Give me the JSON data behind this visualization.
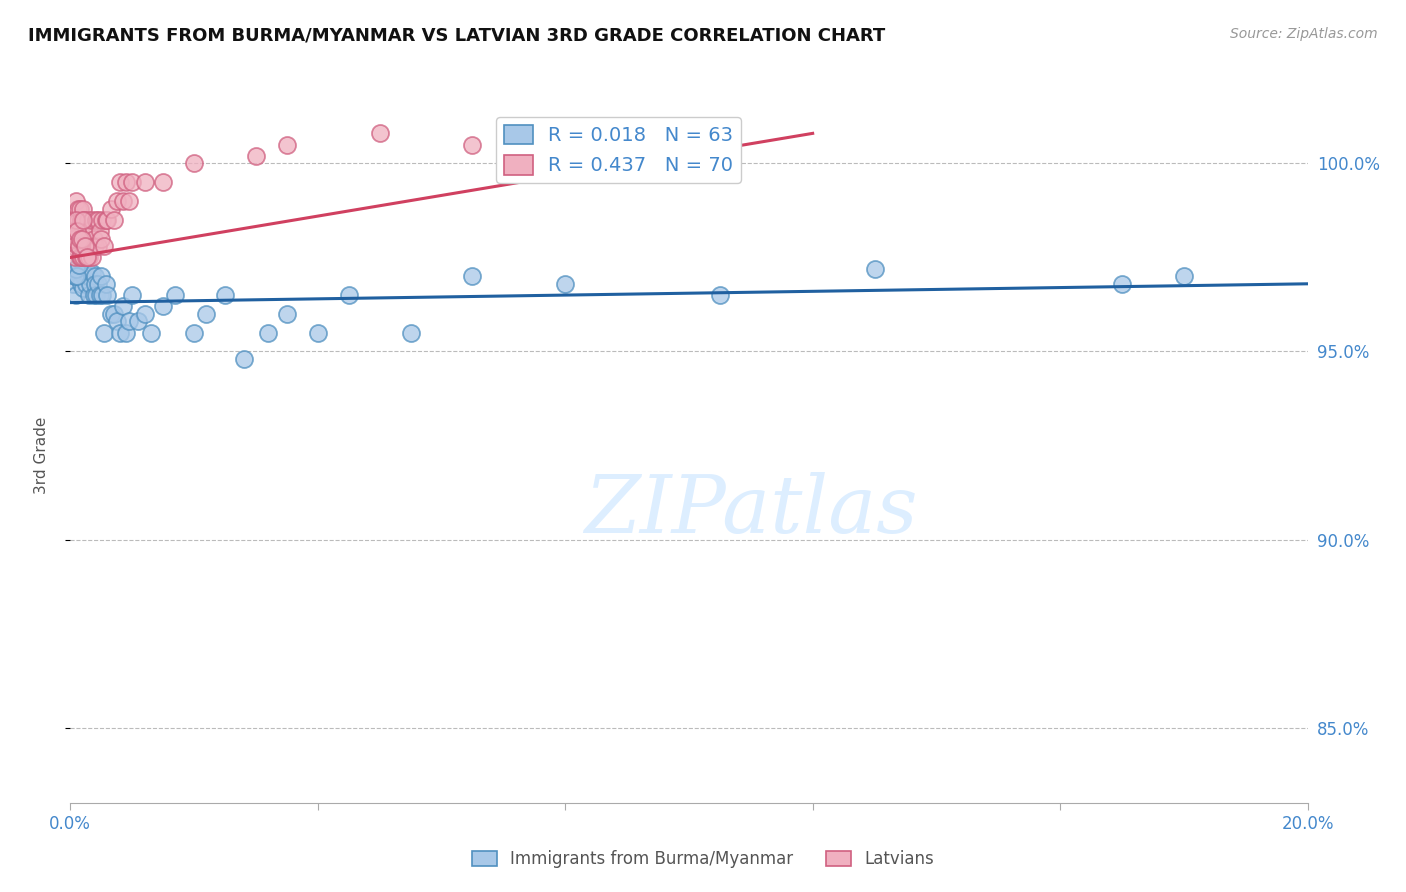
{
  "title": "IMMIGRANTS FROM BURMA/MYANMAR VS LATVIAN 3RD GRADE CORRELATION CHART",
  "source": "Source: ZipAtlas.com",
  "ylabel": "3rd Grade",
  "xlim": [
    0.0,
    20.0
  ],
  "ylim": [
    83.0,
    101.5
  ],
  "yticks": [
    85.0,
    90.0,
    95.0,
    100.0
  ],
  "legend_r_blue": "R = 0.018",
  "legend_n_blue": "N = 63",
  "legend_r_pink": "R = 0.437",
  "legend_n_pink": "N = 70",
  "legend_label_blue": "Immigrants from Burma/Myanmar",
  "legend_label_pink": "Latvians",
  "blue_color": "#a8c8e8",
  "pink_color": "#f0b0c0",
  "blue_edge_color": "#5090c0",
  "pink_edge_color": "#d06080",
  "blue_line_color": "#2060a0",
  "pink_line_color": "#d04060",
  "grid_color": "#bbbbbb",
  "right_axis_color": "#4488cc",
  "watermark_color": "#ddeeff",
  "blue_x": [
    0.05,
    0.08,
    0.1,
    0.1,
    0.12,
    0.13,
    0.15,
    0.15,
    0.17,
    0.18,
    0.2,
    0.2,
    0.22,
    0.25,
    0.25,
    0.28,
    0.3,
    0.3,
    0.32,
    0.35,
    0.38,
    0.4,
    0.4,
    0.42,
    0.45,
    0.48,
    0.5,
    0.52,
    0.55,
    0.58,
    0.6,
    0.65,
    0.7,
    0.75,
    0.8,
    0.85,
    0.9,
    0.95,
    1.0,
    1.1,
    1.2,
    1.3,
    1.5,
    1.7,
    2.0,
    2.2,
    2.5,
    2.8,
    3.2,
    3.5,
    4.0,
    4.5,
    5.5,
    6.5,
    8.0,
    10.5,
    13.0,
    17.0,
    18.0,
    0.07,
    0.09,
    0.11,
    0.14
  ],
  "blue_y": [
    96.8,
    97.0,
    97.2,
    96.5,
    97.0,
    97.2,
    97.0,
    97.5,
    96.8,
    97.1,
    97.3,
    96.7,
    97.0,
    97.2,
    96.8,
    97.0,
    96.5,
    97.0,
    96.8,
    97.1,
    96.5,
    97.0,
    96.8,
    96.5,
    96.8,
    96.5,
    97.0,
    96.5,
    95.5,
    96.8,
    96.5,
    96.0,
    96.0,
    95.8,
    95.5,
    96.2,
    95.5,
    95.8,
    96.5,
    95.8,
    96.0,
    95.5,
    96.2,
    96.5,
    95.5,
    96.0,
    96.5,
    94.8,
    95.5,
    96.0,
    95.5,
    96.5,
    95.5,
    97.0,
    96.8,
    96.5,
    97.2,
    96.8,
    97.0,
    97.0,
    97.2,
    97.0,
    97.3
  ],
  "pink_x": [
    0.03,
    0.05,
    0.05,
    0.07,
    0.08,
    0.08,
    0.1,
    0.1,
    0.1,
    0.12,
    0.12,
    0.13,
    0.13,
    0.15,
    0.15,
    0.15,
    0.17,
    0.18,
    0.18,
    0.2,
    0.2,
    0.2,
    0.22,
    0.22,
    0.25,
    0.25,
    0.28,
    0.28,
    0.3,
    0.3,
    0.32,
    0.35,
    0.35,
    0.38,
    0.4,
    0.42,
    0.45,
    0.45,
    0.48,
    0.5,
    0.52,
    0.55,
    0.58,
    0.6,
    0.65,
    0.7,
    0.75,
    0.8,
    0.85,
    0.9,
    0.95,
    1.0,
    1.2,
    1.5,
    2.0,
    3.0,
    3.5,
    5.0,
    6.5,
    7.5,
    0.04,
    0.06,
    0.09,
    0.11,
    0.14,
    0.16,
    0.19,
    0.21,
    0.24,
    0.27
  ],
  "pink_y": [
    98.5,
    97.8,
    98.5,
    98.2,
    97.5,
    98.0,
    98.0,
    98.5,
    99.0,
    97.8,
    98.5,
    98.0,
    98.8,
    97.5,
    98.2,
    98.8,
    98.0,
    97.5,
    98.5,
    97.5,
    98.0,
    98.8,
    97.8,
    98.5,
    97.5,
    98.2,
    97.8,
    98.5,
    97.5,
    98.2,
    97.8,
    97.5,
    98.5,
    98.0,
    97.8,
    98.5,
    97.8,
    98.5,
    98.2,
    98.0,
    98.5,
    97.8,
    98.5,
    98.5,
    98.8,
    98.5,
    99.0,
    99.5,
    99.0,
    99.5,
    99.0,
    99.5,
    99.5,
    99.5,
    100.0,
    100.2,
    100.5,
    100.8,
    100.5,
    100.8,
    98.0,
    98.2,
    98.5,
    98.2,
    97.8,
    98.0,
    98.0,
    98.5,
    97.8,
    97.5
  ],
  "blue_trend_x": [
    0.0,
    20.0
  ],
  "blue_trend_y": [
    96.3,
    96.8
  ],
  "pink_trend_x": [
    0.0,
    12.0
  ],
  "pink_trend_y": [
    97.5,
    100.8
  ]
}
